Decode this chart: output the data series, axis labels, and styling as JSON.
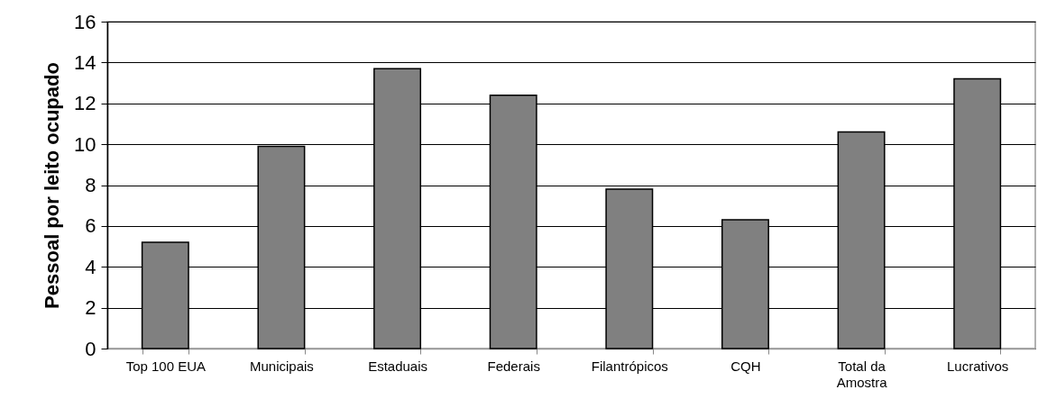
{
  "chart_data": {
    "type": "bar",
    "ylabel": "Pessoal por leito ocupado",
    "categories": [
      "Top 100 EUA",
      "Municipais",
      "Estaduais",
      "Federais",
      "Filantrópicos",
      "CQH",
      "Total da Amostra",
      "Lucrativos"
    ],
    "values": [
      5.2,
      9.9,
      13.7,
      12.4,
      7.8,
      6.3,
      10.6,
      13.2
    ],
    "color": "#808080",
    "ylim": [
      0,
      16
    ],
    "yticks": [
      0,
      2,
      4,
      6,
      8,
      10,
      12,
      14,
      16
    ],
    "grid": "y"
  }
}
